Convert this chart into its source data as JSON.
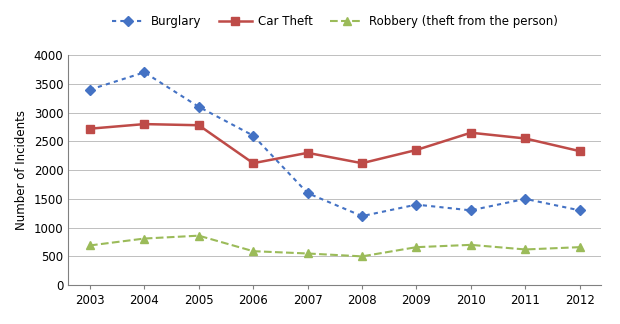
{
  "years": [
    2003,
    2004,
    2005,
    2006,
    2007,
    2008,
    2009,
    2010,
    2011,
    2012
  ],
  "burglary": [
    3400,
    3700,
    3100,
    2600,
    1600,
    1200,
    1400,
    1300,
    1500,
    1300
  ],
  "car_theft": [
    2720,
    2800,
    2780,
    2120,
    2300,
    2120,
    2350,
    2650,
    2550,
    2330
  ],
  "robbery": [
    690,
    810,
    860,
    590,
    550,
    500,
    660,
    700,
    620,
    660
  ],
  "burglary_color": "#4472C4",
  "car_theft_color": "#BE4B48",
  "robbery_color": "#9BBB59",
  "ylabel": "Number of Incidents",
  "ylim": [
    0,
    4000
  ],
  "yticks": [
    0,
    500,
    1000,
    1500,
    2000,
    2500,
    3000,
    3500,
    4000
  ],
  "legend_burglary": "Burglary",
  "legend_car_theft": "Car Theft",
  "legend_robbery": "Robbery (theft from the person)",
  "background_color": "#ffffff",
  "grid_color": "#bfbfbf"
}
